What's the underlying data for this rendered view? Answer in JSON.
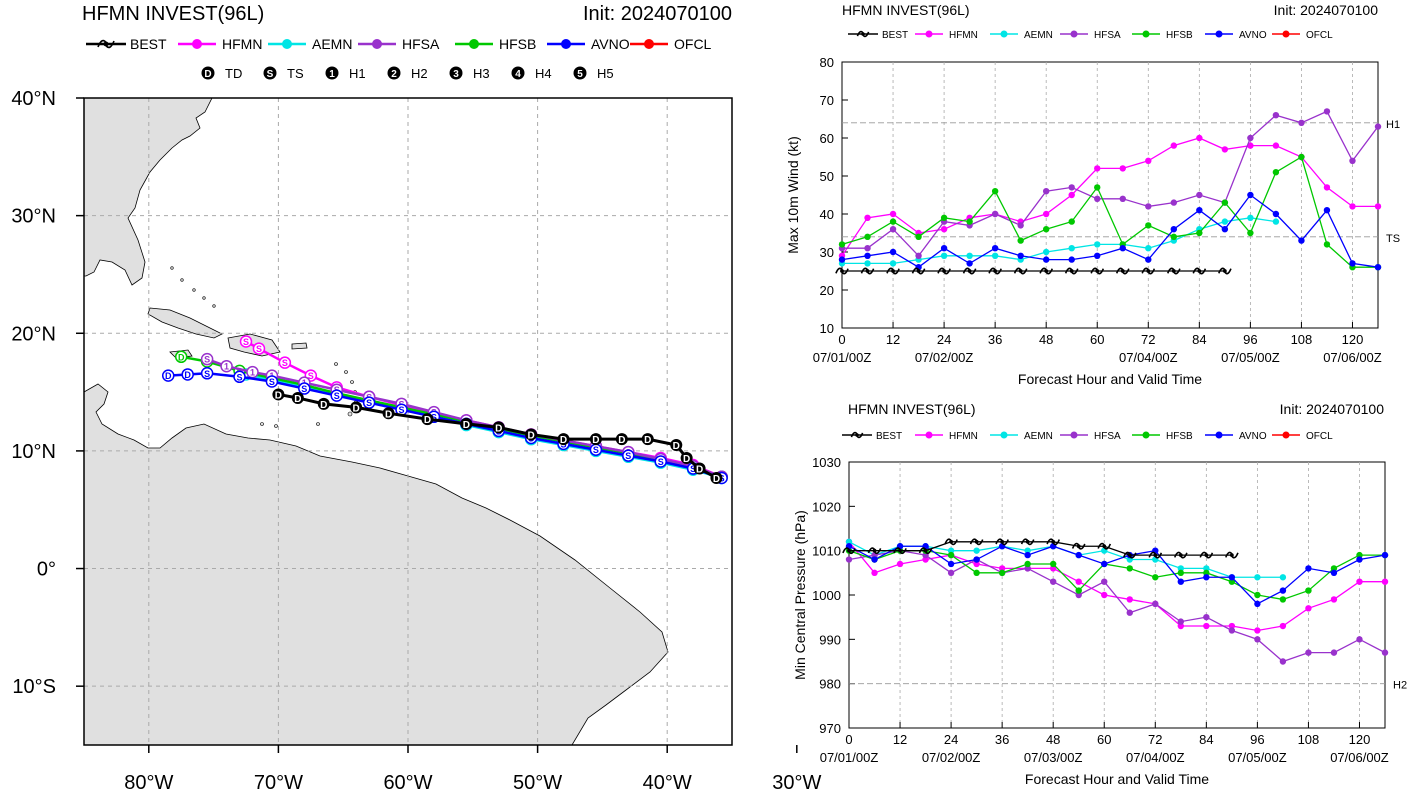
{
  "map": {
    "title": "HFMN INVEST(96L)",
    "init": "Init: 2024070100",
    "lat_labels": [
      "40°N",
      "30°N",
      "20°N",
      "10°N",
      "0°",
      "10°S"
    ],
    "lon_labels": [
      "80°W",
      "70°W",
      "60°W",
      "50°W",
      "40°W",
      "30°W"
    ],
    "lat_values": [
      40,
      30,
      20,
      10,
      0,
      -10
    ],
    "lon_values": [
      -80,
      -70,
      -60,
      -50,
      -40,
      -30
    ],
    "extent": {
      "lon_min": -85,
      "lon_max": -35,
      "lat_min": -15,
      "lat_max": 40
    },
    "legend": {
      "models": [
        {
          "name": "BEST",
          "color": "#000000"
        },
        {
          "name": "HFMN",
          "color": "#ff00ff"
        },
        {
          "name": "AEMN",
          "color": "#00e5e5"
        },
        {
          "name": "HFSA",
          "color": "#9932cc"
        },
        {
          "name": "HFSB",
          "color": "#00c800"
        },
        {
          "name": "AVNO",
          "color": "#0000ff"
        },
        {
          "name": "OFCL",
          "color": "#ff0000"
        }
      ],
      "categories": [
        {
          "symbol": "D",
          "name": "TD"
        },
        {
          "symbol": "S",
          "name": "TS"
        },
        {
          "symbol": "1",
          "name": "H1"
        },
        {
          "symbol": "2",
          "name": "H2"
        },
        {
          "symbol": "3",
          "name": "H3"
        },
        {
          "symbol": "4",
          "name": "H4"
        },
        {
          "symbol": "5",
          "name": "H5"
        }
      ]
    },
    "land_color": "#e0e0e0",
    "tracks": [
      {
        "model": "HFMN",
        "color": "#ff00ff",
        "points": [
          [
            -35.8,
            7.8
          ],
          [
            -38,
            8.8
          ],
          [
            -40.5,
            9.4
          ],
          [
            -43,
            9.9
          ],
          [
            -45.5,
            10.4
          ],
          [
            -48,
            10.9
          ],
          [
            -50.5,
            11.4
          ],
          [
            -53,
            12.0
          ],
          [
            -55.5,
            12.6
          ],
          [
            -58,
            13.2
          ],
          [
            -60.5,
            13.9
          ],
          [
            -63,
            14.6
          ],
          [
            -65.5,
            15.4
          ],
          [
            -67.5,
            16.4
          ],
          [
            -69.5,
            17.5
          ],
          [
            -71.5,
            18.7
          ],
          [
            -72.5,
            19.3
          ]
        ],
        "labels": [
          "S",
          "S",
          "S",
          "S",
          "S",
          "S",
          "S",
          "S",
          "S",
          "S",
          "S",
          "S",
          "S",
          "S",
          "S",
          "S",
          "S"
        ]
      },
      {
        "model": "AEMN",
        "color": "#00e5e5",
        "points": [
          [
            -35.8,
            7.7
          ],
          [
            -38,
            8.4
          ],
          [
            -40.5,
            9.0
          ],
          [
            -43,
            9.5
          ],
          [
            -45.5,
            10.0
          ],
          [
            -48,
            10.5
          ],
          [
            -50.5,
            11.0
          ],
          [
            -53,
            11.6
          ],
          [
            -55.5,
            12.2
          ],
          [
            -58,
            12.9
          ],
          [
            -60.5,
            13.6
          ],
          [
            -63,
            14.2
          ],
          [
            -65.5,
            14.8
          ],
          [
            -68,
            15.4
          ],
          [
            -70.5,
            16.0
          ],
          [
            -72.5,
            16.5
          ]
        ],
        "labels": [
          "D",
          "D",
          "D",
          "D",
          "D",
          "D",
          "D",
          "D",
          "D",
          "D",
          "D",
          "D",
          "D",
          "D",
          "D",
          "D"
        ]
      },
      {
        "model": "HFSB",
        "color": "#00c800",
        "points": [
          [
            -35.8,
            7.8
          ],
          [
            -38,
            8.6
          ],
          [
            -40.5,
            9.2
          ],
          [
            -43,
            9.8
          ],
          [
            -45.5,
            10.3
          ],
          [
            -48,
            10.8
          ],
          [
            -50.5,
            11.3
          ],
          [
            -53,
            11.9
          ],
          [
            -55.5,
            12.5
          ],
          [
            -58,
            13.1
          ],
          [
            -60.5,
            13.7
          ],
          [
            -63,
            14.3
          ],
          [
            -65.5,
            14.9
          ],
          [
            -68,
            15.6
          ],
          [
            -70.5,
            16.2
          ],
          [
            -73,
            16.8
          ],
          [
            -75.5,
            17.6
          ],
          [
            -77.5,
            18.0
          ]
        ],
        "labels": [
          "S",
          "S",
          "S",
          "S",
          "S",
          "S",
          "S",
          "S",
          "S",
          "S",
          "S",
          "S",
          "S",
          "S",
          "S",
          "S",
          "S",
          "D"
        ]
      },
      {
        "model": "HFSA",
        "color": "#9932cc",
        "points": [
          [
            -35.8,
            7.8
          ],
          [
            -38,
            8.7
          ],
          [
            -40.5,
            9.3
          ],
          [
            -43,
            9.9
          ],
          [
            -45.5,
            10.4
          ],
          [
            -48,
            10.9
          ],
          [
            -50.5,
            11.4
          ],
          [
            -53,
            12.0
          ],
          [
            -55.5,
            12.6
          ],
          [
            -58,
            13.3
          ],
          [
            -60.5,
            14.0
          ],
          [
            -63,
            14.6
          ],
          [
            -65.5,
            15.2
          ],
          [
            -68,
            15.8
          ],
          [
            -70.5,
            16.4
          ],
          [
            -72,
            16.7
          ],
          [
            -74,
            17.2
          ],
          [
            -75.5,
            17.8
          ]
        ],
        "labels": [
          "S",
          "S",
          "S",
          "S",
          "S",
          "S",
          "S",
          "S",
          "S",
          "S",
          "S",
          "S",
          "S",
          "1",
          "1",
          "1",
          "1",
          "S"
        ]
      },
      {
        "model": "AVNO",
        "color": "#0000ff",
        "points": [
          [
            -35.8,
            7.7
          ],
          [
            -38,
            8.5
          ],
          [
            -40.5,
            9.1
          ],
          [
            -43,
            9.6
          ],
          [
            -45.5,
            10.1
          ],
          [
            -48,
            10.6
          ],
          [
            -50.5,
            11.1
          ],
          [
            -53,
            11.7
          ],
          [
            -55.5,
            12.3
          ],
          [
            -58,
            12.9
          ],
          [
            -60.5,
            13.5
          ],
          [
            -63,
            14.1
          ],
          [
            -65.5,
            14.7
          ],
          [
            -68,
            15.3
          ],
          [
            -70.5,
            15.9
          ],
          [
            -73,
            16.3
          ],
          [
            -75.5,
            16.6
          ],
          [
            -77,
            16.5
          ],
          [
            -78.5,
            16.4
          ]
        ],
        "labels": [
          "S",
          "S",
          "S",
          "S",
          "S",
          "S",
          "S",
          "S",
          "S",
          "S",
          "S",
          "S",
          "S",
          "S",
          "S",
          "S",
          "S",
          "D",
          "D"
        ]
      },
      {
        "model": "BEST",
        "color": "#000000",
        "points": [
          [
            -36.2,
            7.7
          ],
          [
            -37.5,
            8.5
          ],
          [
            -38.5,
            9.4
          ],
          [
            -39.3,
            10.5
          ],
          [
            -41.5,
            11.0
          ],
          [
            -43.5,
            11.0
          ],
          [
            -45.5,
            11.0
          ],
          [
            -48,
            11.0
          ],
          [
            -50.5,
            11.4
          ],
          [
            -53,
            12.0
          ],
          [
            -55.5,
            12.3
          ],
          [
            -58.5,
            12.7
          ],
          [
            -61.5,
            13.2
          ],
          [
            -64,
            13.7
          ],
          [
            -66.5,
            14.0
          ],
          [
            -68.5,
            14.5
          ],
          [
            -70,
            14.8
          ]
        ],
        "labels": [
          "D",
          "D",
          "D",
          "D",
          "D",
          "D",
          "D",
          "D",
          "D",
          "D",
          "D",
          "D",
          "D",
          "D",
          "D",
          "D",
          "D"
        ]
      }
    ]
  },
  "wind_chart": {
    "title": "HFMN INVEST(96L)",
    "init": "Init: 2024070100",
    "ylabel": "Max 10m Wind (kt)",
    "xlabel": "Forecast Hour and Valid Time",
    "ylim": [
      10,
      80
    ],
    "yticks": [
      10,
      20,
      30,
      40,
      50,
      60,
      70,
      80
    ],
    "xticks": [
      0,
      12,
      24,
      36,
      48,
      60,
      72,
      84,
      96,
      108,
      120
    ],
    "date_labels": [
      {
        "hour": 0,
        "label": "07/01/00Z"
      },
      {
        "hour": 24,
        "label": "07/02/00Z"
      },
      {
        "hour": 72,
        "label": "07/04/00Z"
      },
      {
        "hour": 96,
        "label": "07/05/00Z"
      },
      {
        "hour": 120,
        "label": "07/06/00Z"
      }
    ],
    "ref_lines": [
      {
        "value": 64,
        "label": "H1"
      },
      {
        "value": 34,
        "label": "TS"
      }
    ],
    "legend": [
      "BEST",
      "HFMN",
      "AEMN",
      "HFSA",
      "HFSB",
      "AVNO",
      "OFCL"
    ],
    "chart_data": {
      "type": "line",
      "x": [
        0,
        6,
        12,
        18,
        24,
        30,
        36,
        42,
        48,
        54,
        60,
        66,
        72,
        78,
        84,
        90,
        96,
        102,
        108,
        114,
        120,
        126
      ],
      "series": [
        {
          "name": "HFMN",
          "color": "#ff00ff",
          "values": [
            29,
            39,
            40,
            35,
            36,
            39,
            40,
            38,
            40,
            45,
            52,
            52,
            54,
            58,
            60,
            57,
            58,
            58,
            55,
            47,
            42,
            42
          ]
        },
        {
          "name": "AEMN",
          "color": "#00e5e5",
          "values": [
            27,
            27,
            27,
            28,
            29,
            29,
            29,
            28,
            30,
            31,
            32,
            32,
            31,
            33,
            36,
            38,
            39,
            38,
            null,
            null,
            null,
            null
          ]
        },
        {
          "name": "HFSA",
          "color": "#9932cc",
          "values": [
            31,
            31,
            36,
            29,
            38,
            37,
            40,
            37,
            46,
            47,
            44,
            44,
            42,
            43,
            45,
            43,
            60,
            66,
            64,
            67,
            54,
            63
          ]
        },
        {
          "name": "HFSB",
          "color": "#00c800",
          "values": [
            32,
            34,
            38,
            34,
            39,
            38,
            46,
            33,
            36,
            38,
            47,
            32,
            37,
            34,
            35,
            43,
            35,
            51,
            55,
            32,
            26,
            26
          ]
        },
        {
          "name": "AVNO",
          "color": "#0000ff",
          "values": [
            28,
            29,
            30,
            26,
            31,
            27,
            31,
            29,
            28,
            28,
            29,
            31,
            28,
            36,
            41,
            36,
            45,
            40,
            33,
            41,
            27,
            26
          ]
        },
        {
          "name": "BEST",
          "color": "#000000",
          "values": [
            25,
            25,
            25,
            25,
            25,
            25,
            25,
            25,
            25,
            25,
            25,
            25,
            25,
            25,
            25,
            25,
            null,
            null,
            null,
            null,
            null,
            null
          ]
        }
      ]
    }
  },
  "pressure_chart": {
    "title": "HFMN INVEST(96L)",
    "init": "Init: 2024070100",
    "ylabel": "Min Central Pressure (hPa)",
    "xlabel": "Forecast Hour and Valid Time",
    "ylim": [
      970,
      1030
    ],
    "yticks": [
      970,
      980,
      990,
      1000,
      1010,
      1020,
      1030
    ],
    "xticks": [
      0,
      12,
      24,
      36,
      48,
      60,
      72,
      84,
      96,
      108,
      120
    ],
    "date_labels": [
      {
        "hour": 0,
        "label": "07/01/00Z"
      },
      {
        "hour": 24,
        "label": "07/02/00Z"
      },
      {
        "hour": 48,
        "label": "07/03/00Z"
      },
      {
        "hour": 72,
        "label": "07/04/00Z"
      },
      {
        "hour": 96,
        "label": "07/05/00Z"
      },
      {
        "hour": 120,
        "label": "07/06/00Z"
      }
    ],
    "ref_lines": [
      {
        "value": 980,
        "label": "H2"
      }
    ],
    "legend": [
      "BEST",
      "HFMN",
      "AEMN",
      "HFSA",
      "HFSB",
      "AVNO",
      "OFCL"
    ],
    "chart_data": {
      "type": "line",
      "x": [
        0,
        6,
        12,
        18,
        24,
        30,
        36,
        42,
        48,
        54,
        60,
        66,
        72,
        78,
        84,
        90,
        96,
        102,
        108,
        114,
        120,
        126
      ],
      "series": [
        {
          "name": "HFMN",
          "color": "#ff00ff",
          "values": [
            1012,
            1005,
            1007,
            1008,
            1009,
            1007,
            1006,
            1006,
            1006,
            1003,
            1000,
            999,
            998,
            993,
            993,
            993,
            992,
            993,
            997,
            999,
            1003,
            1003
          ]
        },
        {
          "name": "AEMN",
          "color": "#00e5e5",
          "values": [
            1012,
            1009,
            1011,
            1011,
            1010,
            1010,
            1011,
            1010,
            1011,
            1009,
            1010,
            1008,
            1008,
            1006,
            1006,
            1004,
            1004,
            1004,
            null,
            null,
            null,
            null
          ]
        },
        {
          "name": "HFSA",
          "color": "#9932cc",
          "values": [
            1008,
            1009,
            1010,
            1009,
            1005,
            1008,
            1005,
            1006,
            1003,
            1000,
            1003,
            996,
            998,
            994,
            995,
            992,
            990,
            985,
            987,
            987,
            990,
            987
          ]
        },
        {
          "name": "HFSB",
          "color": "#00c800",
          "values": [
            1010,
            1008,
            1010,
            1010,
            1009,
            1005,
            1005,
            1007,
            1007,
            1001,
            1007,
            1006,
            1004,
            1005,
            1005,
            1003,
            1000,
            999,
            1001,
            1006,
            1009,
            1009
          ]
        },
        {
          "name": "AVNO",
          "color": "#0000ff",
          "values": [
            1011,
            1008,
            1011,
            1011,
            1007,
            1008,
            1011,
            1009,
            1011,
            1009,
            1007,
            1009,
            1010,
            1003,
            1004,
            1004,
            998,
            1001,
            1006,
            1005,
            1008,
            1009
          ]
        },
        {
          "name": "BEST",
          "color": "#000000",
          "values": [
            1010,
            1010,
            1010,
            1010,
            1012,
            1012,
            1012,
            1012,
            1012,
            1011,
            1011,
            1009,
            1009,
            1009,
            1009,
            1009,
            null,
            null,
            null,
            null,
            null,
            null
          ]
        }
      ]
    }
  }
}
